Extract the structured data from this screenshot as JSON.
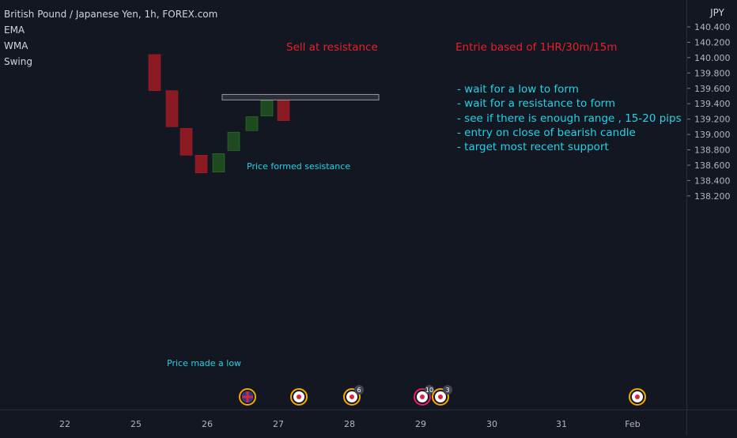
{
  "header": {
    "symbol_title": "British Pound / Japanese Yen, 1h, FOREX.com",
    "indicators": [
      "EMA",
      "WMA",
      "Swing"
    ],
    "currency": "JPY"
  },
  "annotations": {
    "sell_title": "Sell at resistance",
    "entry_title": "Entrie based of 1HR/30m/15m",
    "notes": [
      "- wait for a low to form",
      "- wait for a resistance to form",
      "- see if there is enough range , 15-20 pips",
      "- entry on close of bearish candle",
      "- target most recent support"
    ],
    "resistance_label": "Price formed sesistance",
    "low_label": "Price made a low"
  },
  "colors": {
    "background": "#131722",
    "bearish": "#8b1a22",
    "bullish": "#1f4a1f",
    "resistance_line": "#9598a1",
    "annotation_red": "#e8202a",
    "annotation_cyan": "#22d3e6"
  },
  "chart_data": {
    "type": "candlestick",
    "y_axis": {
      "ticks": [
        "140.400",
        "140.200",
        "140.000",
        "139.800",
        "139.600",
        "139.400",
        "139.200",
        "139.000",
        "138.800",
        "138.600",
        "138.400",
        "138.200"
      ],
      "range": [
        138.15,
        140.5
      ]
    },
    "x_axis": {
      "ticks": [
        "22",
        "25",
        "26",
        "27",
        "28",
        "29",
        "30",
        "31",
        "Feb"
      ]
    },
    "candles": [
      {
        "open": 140.04,
        "close": 139.57,
        "direction": "bearish"
      },
      {
        "open": 139.57,
        "close": 139.1,
        "direction": "bearish"
      },
      {
        "open": 139.08,
        "close": 138.73,
        "direction": "bearish"
      },
      {
        "open": 138.73,
        "close": 138.5,
        "direction": "bearish"
      },
      {
        "open": 138.51,
        "close": 138.75,
        "direction": "bullish"
      },
      {
        "open": 138.79,
        "close": 139.03,
        "direction": "bullish"
      },
      {
        "open": 139.05,
        "close": 139.23,
        "direction": "bullish"
      },
      {
        "open": 139.24,
        "close": 139.44,
        "direction": "bullish"
      },
      {
        "open": 139.44,
        "close": 139.18,
        "direction": "bearish"
      }
    ],
    "resistance_level": 139.49,
    "event_markers": [
      {
        "flag": "uk-flag-icon",
        "count": ""
      },
      {
        "flag": "japan-flag-icon",
        "count": ""
      },
      {
        "flag": "japan-flag-icon",
        "count": "6"
      },
      {
        "flag": "japan-flag-icon",
        "count": "10"
      },
      {
        "flag": "japan-flag-icon",
        "count": "3"
      },
      {
        "flag": "japan-flag-icon",
        "count": ""
      }
    ]
  }
}
